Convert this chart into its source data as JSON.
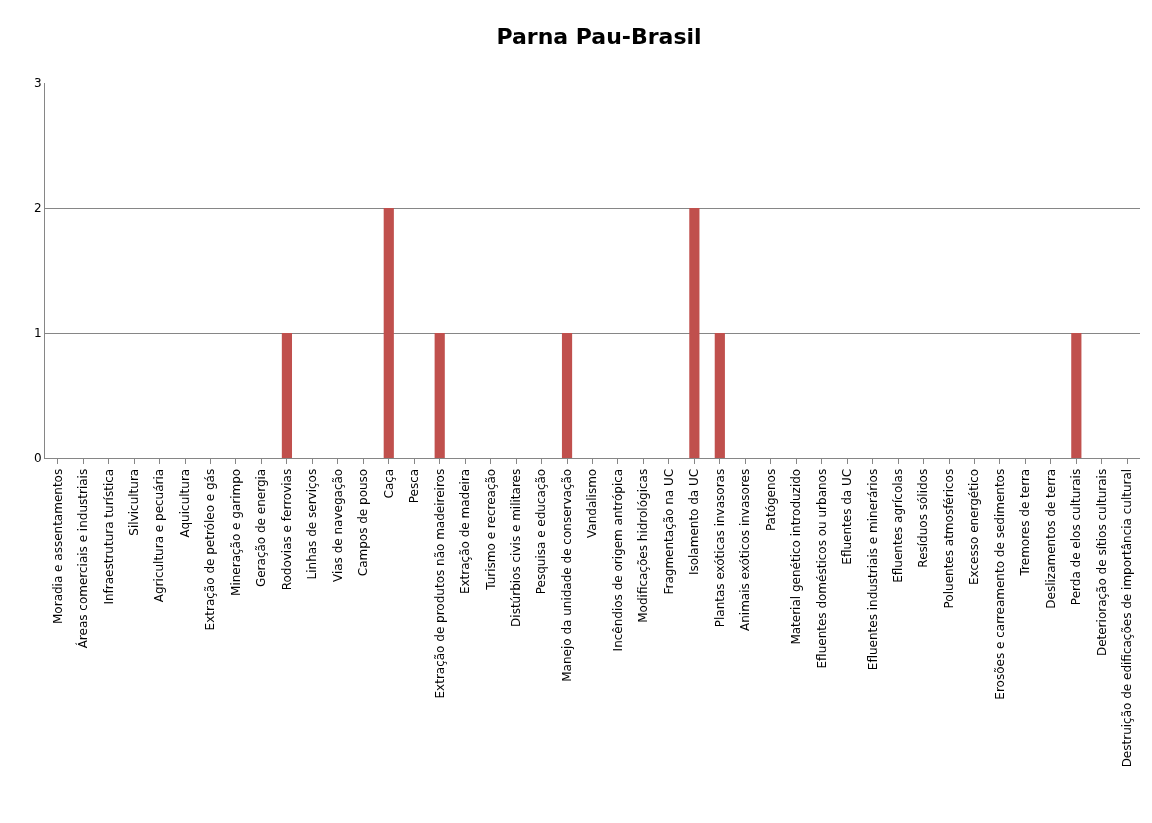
{
  "chart_data": {
    "type": "bar",
    "title": "Parna Pau-Brasil",
    "categories": [
      "Moradia e assentamentos",
      "Áreas comerciais e industriais",
      "Infraestrutura turística",
      "Silvicultura",
      "Agricultura e pecuária",
      "Aquicultura",
      "Extração de petróleo e gás",
      "Mineração e garimpo",
      "Geração de energia",
      "Rodovias e ferrovias",
      "Linhas de serviços",
      "Vias de navegação",
      "Campos de pouso",
      "Caça",
      "Pesca",
      "Extração de produtos não madeireiros",
      "Extração de madeira",
      "Turismo e recreação",
      "Distúrbios civis e militares",
      "Pesquisa e educação",
      "Manejo da unidade de conservação",
      "Vandalismo",
      "Incêndios de origem antrópica",
      "Modificações hidrológicas",
      "Fragmentação na UC",
      "Isolamento da UC",
      "Plantas exóticas invasoras",
      "Animais exóticos invasores",
      "Patógenos",
      "Material genético introduzido",
      "Efluentes domésticos ou urbanos",
      "Efluentes da UC",
      "Efluentes industriais e minerários",
      "Efluentes agrícolas",
      "Resíduos sólidos",
      "Poluentes atmosféricos",
      "Excesso energético",
      "Erosões e carreamento de sedimentos",
      "Tremores de terra",
      "Deslizamentos de terra",
      "Perda de elos culturais",
      "Deterioração de sítios culturais",
      "Destruição de edificações de importância cultural"
    ],
    "values": [
      0,
      0,
      0,
      0,
      0,
      0,
      0,
      0,
      0,
      1,
      0,
      0,
      0,
      2,
      0,
      1,
      0,
      0,
      0,
      0,
      1,
      0,
      0,
      0,
      0,
      2,
      1,
      0,
      0,
      0,
      0,
      0,
      0,
      0,
      0,
      0,
      0,
      0,
      0,
      0,
      1,
      0,
      0
    ],
    "color": "#c0504d",
    "ylim": [
      0,
      3
    ],
    "yticks": [
      0,
      1,
      2,
      3
    ],
    "grid": "y",
    "legend": false
  }
}
